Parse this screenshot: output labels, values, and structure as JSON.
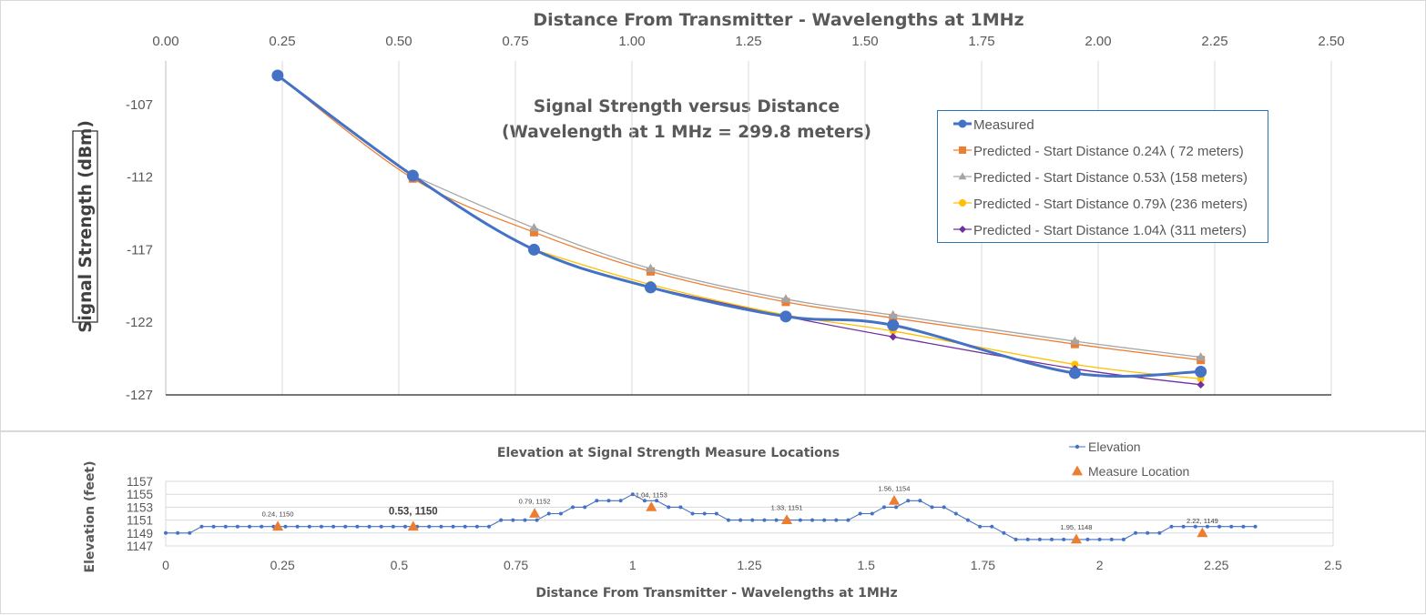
{
  "colors": {
    "measured": "#4472C4",
    "pred024": "#ED7D31",
    "pred053": "#A5A5A5",
    "pred079": "#FFC000",
    "pred104": "#7030A0",
    "grid": "#d9d9d9",
    "axis_text": "#595959"
  },
  "chart_data": [
    {
      "type": "line",
      "title": "Signal Strength versus Distance",
      "subtitle": "(Wavelength at 1 MHz = 299.8 meters)",
      "xlabel": "Distance From Transmitter - Wavelengths at 1MHz",
      "ylabel": "Signal Strength (dBm)",
      "xlim": [
        0,
        2.5
      ],
      "ylim": [
        -127,
        -104
      ],
      "x_ticks": [
        "0.00",
        "0.25",
        "0.50",
        "0.75",
        "1.00",
        "1.25",
        "1.50",
        "1.75",
        "2.00",
        "2.25",
        "2.50"
      ],
      "y_ticks": [
        "-107",
        "-112",
        "-117",
        "-122",
        "-127"
      ],
      "x_axis_position": "top",
      "grid": "vertical",
      "legend_position": "top-right",
      "series": [
        {
          "name": "Measured",
          "marker": "circle",
          "x": [
            0.24,
            0.53,
            0.79,
            1.04,
            1.33,
            1.56,
            1.95,
            2.22
          ],
          "y": [
            -105.0,
            -111.9,
            -117.0,
            -119.6,
            -121.6,
            -122.2,
            -125.5,
            -125.4
          ]
        },
        {
          "name": "Predicted - Start Distance 0.24λ (  72 meters)",
          "marker": "square",
          "x": [
            0.24,
            0.53,
            0.79,
            1.04,
            1.33,
            1.56,
            1.95,
            2.22
          ],
          "y": [
            -105.0,
            -112.1,
            -115.8,
            -118.5,
            -120.6,
            -121.7,
            -123.5,
            -124.6
          ]
        },
        {
          "name": "Predicted - Start Distance 0.53λ (158 meters)",
          "marker": "triangle",
          "x": [
            0.53,
            0.79,
            1.04,
            1.33,
            1.56,
            1.95,
            2.22
          ],
          "y": [
            -111.9,
            -115.5,
            -118.3,
            -120.4,
            -121.5,
            -123.3,
            -124.4
          ]
        },
        {
          "name": "Predicted - Start Distance 0.79λ (236 meters)",
          "marker": "circle-small",
          "x": [
            0.79,
            1.04,
            1.33,
            1.56,
            1.95,
            2.22
          ],
          "y": [
            -117.0,
            -119.4,
            -121.5,
            -122.6,
            -124.9,
            -125.9
          ]
        },
        {
          "name": "Predicted - Start Distance 1.04λ (311 meters)",
          "marker": "diamond",
          "x": [
            1.04,
            1.33,
            1.56,
            1.95,
            2.22
          ],
          "y": [
            -119.6,
            -121.6,
            -123.0,
            -125.2,
            -126.3
          ]
        }
      ]
    },
    {
      "type": "line",
      "title": "Elevation at Signal Strength Measure Locations",
      "xlabel": "Distance From Transmitter - Wavelengths at 1MHz",
      "ylabel": "Elevation (feet)",
      "xlim": [
        0,
        2.5
      ],
      "ylim": [
        1147,
        1157
      ],
      "x_ticks": [
        "0",
        "0.25",
        "0.5",
        "0.75",
        "1",
        "1.25",
        "1.5",
        "1.75",
        "2",
        "2.25",
        "2.5"
      ],
      "y_ticks": [
        "1157",
        "1155",
        "1153",
        "1151",
        "1149",
        "1147"
      ],
      "legend_position": "top-right",
      "series": [
        {
          "name": "Elevation",
          "marker": "dot",
          "x_start": 0,
          "x_step": 0.025641,
          "y": [
            1149,
            1149,
            1149,
            1150,
            1150,
            1150,
            1150,
            1150,
            1150,
            1150,
            1150,
            1150,
            1150,
            1150,
            1150,
            1150,
            1150,
            1150,
            1150,
            1150,
            1150,
            1150,
            1150,
            1150,
            1150,
            1150,
            1150,
            1150,
            1151,
            1151,
            1151,
            1151,
            1152,
            1152,
            1153,
            1153,
            1154,
            1154,
            1154,
            1155,
            1154,
            1154,
            1153,
            1153,
            1152,
            1152,
            1152,
            1151,
            1151,
            1151,
            1151,
            1151,
            1151,
            1151,
            1151,
            1151,
            1151,
            1151,
            1152,
            1152,
            1153,
            1153,
            1154,
            1154,
            1153,
            1153,
            1152,
            1151,
            1150,
            1150,
            1149,
            1148,
            1148,
            1148,
            1148,
            1148,
            1148,
            1148,
            1148,
            1148,
            1148,
            1149,
            1149,
            1149,
            1150,
            1150,
            1150,
            1150,
            1150,
            1150,
            1150,
            1150
          ]
        },
        {
          "name": "Measure Location",
          "marker": "triangle",
          "x": [
            0.24,
            0.53,
            0.79,
            1.04,
            1.33,
            1.56,
            1.95,
            2.22
          ],
          "y": [
            1150,
            1150,
            1152,
            1153,
            1151,
            1154,
            1148,
            1149
          ],
          "labels": [
            "0.24, 1150",
            "0.53, 1150",
            "0.79, 1152",
            "1.04, 1153",
            "1.33, 1151",
            "1.56, 1154",
            "1.95, 1148",
            "2.22, 1149"
          ],
          "label_bold_index": 1
        }
      ]
    }
  ]
}
